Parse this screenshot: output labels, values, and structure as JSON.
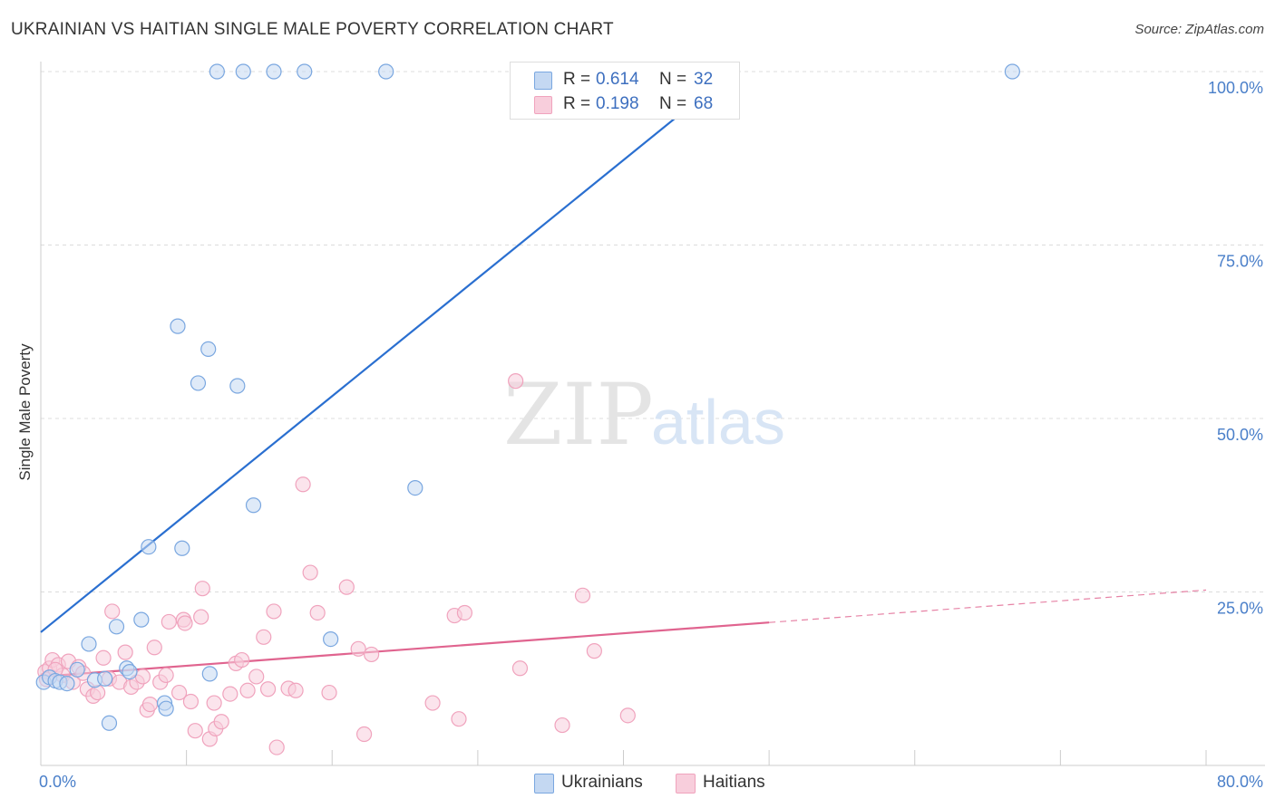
{
  "chart_data": {
    "type": "scatter",
    "title": "UKRAINIAN VS HAITIAN SINGLE MALE POVERTY CORRELATION CHART",
    "source": "Source: ZipAtlas.com",
    "xlabel": "",
    "ylabel": "Single Male Poverty",
    "xlim": [
      0,
      80
    ],
    "ylim": [
      0,
      100
    ],
    "x_tick_labels": [
      "0.0%",
      "80.0%"
    ],
    "y_ticks": [
      {
        "value": 25,
        "label": "25.0%"
      },
      {
        "value": 50,
        "label": "50.0%"
      },
      {
        "value": 75,
        "label": "75.0%"
      },
      {
        "value": 100,
        "label": "100.0%"
      }
    ],
    "grid": true,
    "watermark": "ZIPatlas",
    "series": [
      {
        "name": "Ukrainians",
        "color": "#7aa7e0",
        "fill": "#c4d8f2",
        "line_color": "#2a6fd0",
        "R": "0.614",
        "N": "32",
        "trend": {
          "x1": 0,
          "y1": 19.2,
          "x2": 47.5,
          "y2": 100,
          "dashed_to": 47.5
        },
        "points": [
          [
            0.2,
            12.0
          ],
          [
            0.6,
            12.7
          ],
          [
            1.0,
            12.2
          ],
          [
            1.3,
            12.0
          ],
          [
            1.8,
            11.8
          ],
          [
            2.5,
            13.8
          ],
          [
            3.3,
            17.5
          ],
          [
            3.7,
            12.3
          ],
          [
            4.4,
            12.5
          ],
          [
            4.7,
            6.1
          ],
          [
            5.2,
            20.0
          ],
          [
            5.9,
            14.0
          ],
          [
            6.1,
            13.5
          ],
          [
            6.9,
            21.0
          ],
          [
            7.4,
            31.5
          ],
          [
            8.5,
            9.0
          ],
          [
            8.6,
            8.2
          ],
          [
            9.4,
            63.3
          ],
          [
            9.7,
            31.3
          ],
          [
            10.8,
            55.1
          ],
          [
            11.5,
            60.0
          ],
          [
            11.6,
            13.2
          ],
          [
            12.1,
            100
          ],
          [
            13.5,
            54.7
          ],
          [
            13.9,
            100
          ],
          [
            14.6,
            37.5
          ],
          [
            16.0,
            100
          ],
          [
            18.1,
            100
          ],
          [
            19.9,
            18.2
          ],
          [
            23.7,
            100
          ],
          [
            25.7,
            40.0
          ],
          [
            66.7,
            100
          ]
        ]
      },
      {
        "name": "Haitians",
        "color": "#f0a3bd",
        "fill": "#f8cedc",
        "line_color": "#e0648f",
        "R": "0.198",
        "N": "68",
        "trend": {
          "x1": 0,
          "y1": 12.8,
          "x2": 50.0,
          "y2": 20.6,
          "dashed_to": 80
        },
        "points": [
          [
            0.3,
            13.5
          ],
          [
            0.6,
            14.0
          ],
          [
            0.8,
            15.2
          ],
          [
            1.2,
            14.5
          ],
          [
            1.5,
            13.0
          ],
          [
            1.9,
            15.0
          ],
          [
            2.2,
            12.0
          ],
          [
            2.6,
            14.2
          ],
          [
            2.9,
            13.3
          ],
          [
            3.2,
            11.0
          ],
          [
            3.6,
            10.0
          ],
          [
            3.9,
            10.5
          ],
          [
            4.3,
            15.5
          ],
          [
            4.7,
            12.5
          ],
          [
            4.9,
            22.2
          ],
          [
            5.4,
            12.0
          ],
          [
            5.8,
            16.3
          ],
          [
            6.2,
            11.3
          ],
          [
            6.6,
            12.0
          ],
          [
            7.0,
            12.8
          ],
          [
            7.3,
            8.0
          ],
          [
            7.5,
            8.8
          ],
          [
            7.8,
            17.0
          ],
          [
            8.2,
            12.0
          ],
          [
            8.6,
            13.0
          ],
          [
            8.8,
            20.7
          ],
          [
            9.5,
            10.5
          ],
          [
            9.8,
            21.0
          ],
          [
            9.9,
            20.5
          ],
          [
            10.3,
            9.2
          ],
          [
            10.6,
            5.0
          ],
          [
            11.0,
            21.4
          ],
          [
            11.1,
            25.5
          ],
          [
            11.6,
            3.8
          ],
          [
            11.9,
            9.0
          ],
          [
            12.0,
            5.3
          ],
          [
            12.4,
            6.3
          ],
          [
            13.0,
            10.3
          ],
          [
            13.4,
            14.7
          ],
          [
            13.8,
            15.2
          ],
          [
            14.2,
            10.8
          ],
          [
            14.8,
            12.8
          ],
          [
            15.3,
            18.5
          ],
          [
            15.6,
            11.0
          ],
          [
            16.0,
            22.2
          ],
          [
            16.2,
            2.6
          ],
          [
            17.0,
            11.1
          ],
          [
            17.5,
            10.8
          ],
          [
            18.0,
            40.5
          ],
          [
            18.5,
            27.8
          ],
          [
            19.0,
            22.0
          ],
          [
            19.8,
            10.5
          ],
          [
            21.0,
            25.7
          ],
          [
            21.8,
            16.8
          ],
          [
            22.2,
            4.5
          ],
          [
            22.7,
            16.0
          ],
          [
            26.9,
            9.0
          ],
          [
            28.4,
            21.6
          ],
          [
            28.7,
            6.7
          ],
          [
            29.1,
            22.0
          ],
          [
            32.6,
            55.4
          ],
          [
            32.9,
            14.0
          ],
          [
            35.8,
            5.8
          ],
          [
            37.2,
            24.5
          ],
          [
            38.0,
            16.5
          ],
          [
            40.3,
            7.2
          ],
          [
            0.4,
            12.4
          ],
          [
            1.0,
            13.8
          ]
        ]
      }
    ]
  }
}
